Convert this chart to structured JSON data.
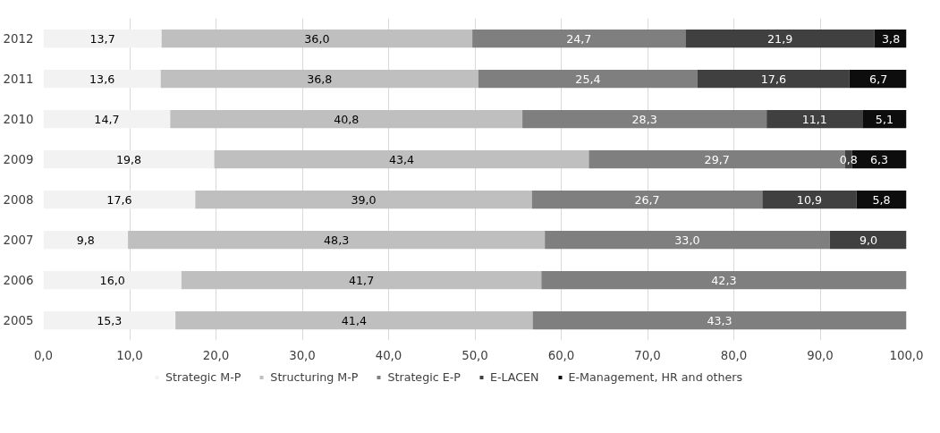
{
  "chart_data": {
    "type": "bar",
    "orientation": "horizontal",
    "stacked": true,
    "categories": [
      "2012",
      "2011",
      "2010",
      "2009",
      "2008",
      "2007",
      "2006",
      "2005"
    ],
    "series": [
      {
        "name": "Strategic M-P",
        "color": "#f2f2f2",
        "values": [
          13.7,
          13.6,
          14.7,
          19.8,
          17.6,
          9.8,
          16.0,
          15.3
        ],
        "value_labels": [
          "13,7",
          "13,6",
          "14,7",
          "19,8",
          "17,6",
          "9,8",
          "16,0",
          "15,3"
        ]
      },
      {
        "name": "Structuring M-P",
        "color": "#bfbfbf",
        "values": [
          36.0,
          36.8,
          40.8,
          43.4,
          39.0,
          48.3,
          41.7,
          41.4
        ],
        "value_labels": [
          "36,0",
          "36,8",
          "40,8",
          "43,4",
          "39,0",
          "48,3",
          "41,7",
          "41,4"
        ]
      },
      {
        "name": "Strategic E-P",
        "color": "#7f7f7f",
        "values": [
          24.7,
          25.4,
          28.3,
          29.7,
          26.7,
          33.0,
          42.3,
          43.3
        ],
        "value_labels": [
          "24,7",
          "25,4",
          "28,3",
          "29,7",
          "26,7",
          "33,0",
          "42,3",
          "43,3"
        ]
      },
      {
        "name": "E-LACEN",
        "color": "#404040",
        "values": [
          21.9,
          17.6,
          11.1,
          0.8,
          10.9,
          9.0,
          null,
          null
        ],
        "value_labels": [
          "21,9",
          "17,6",
          "11,1",
          "0,8",
          "10,9",
          "9,0",
          null,
          null
        ]
      },
      {
        "name": "E-Management, HR and others",
        "color": "#0d0d0d",
        "values": [
          3.8,
          6.7,
          5.1,
          6.3,
          5.8,
          null,
          null,
          null
        ],
        "value_labels": [
          "3,8",
          "6,7",
          "5,1",
          "6,3",
          "5,8",
          null,
          null,
          null
        ]
      }
    ],
    "xlim": [
      0,
      100
    ],
    "xticks": [
      {
        "value": 0,
        "label": "0,0"
      },
      {
        "value": 10,
        "label": "10,0"
      },
      {
        "value": 20,
        "label": "20,0"
      },
      {
        "value": 30,
        "label": "30,0"
      },
      {
        "value": 40,
        "label": "40,0"
      },
      {
        "value": 50,
        "label": "50,0"
      },
      {
        "value": 60,
        "label": "60,0"
      },
      {
        "value": 70,
        "label": "70,0"
      },
      {
        "value": 80,
        "label": "80,0"
      },
      {
        "value": 90,
        "label": "90,0"
      },
      {
        "value": 100,
        "label": "100,0"
      }
    ],
    "grid": "x",
    "legend": "bottom"
  }
}
